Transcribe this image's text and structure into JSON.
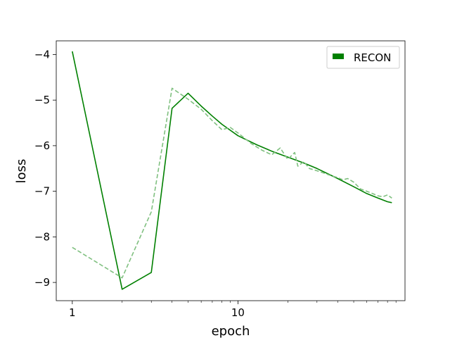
{
  "chart_data": {
    "type": "line",
    "xscale": "log",
    "xlabel": "epoch",
    "ylabel": "loss",
    "xlim": [
      0.8,
      102
    ],
    "ylim": [
      -9.4,
      -3.7
    ],
    "xticks": [
      1,
      10
    ],
    "xtick_labels": [
      "1",
      "10"
    ],
    "yticks": [
      -9,
      -8,
      -7,
      -6,
      -5,
      -4
    ],
    "ytick_labels": [
      "−9",
      "−8",
      "−7",
      "−6",
      "−5",
      "−4"
    ],
    "grid": false,
    "legend_position": "top-right",
    "series": [
      {
        "name": "RECON",
        "style": "solid",
        "color": "#008000",
        "x": [
          1,
          2,
          3,
          4,
          5,
          6,
          7,
          8,
          10,
          13,
          16,
          20,
          25,
          30,
          40,
          50,
          60,
          70,
          80,
          85
        ],
        "y": [
          -3.93,
          -9.15,
          -8.78,
          -5.18,
          -4.85,
          -5.13,
          -5.35,
          -5.53,
          -5.78,
          -5.98,
          -6.12,
          -6.25,
          -6.38,
          -6.5,
          -6.72,
          -6.9,
          -7.05,
          -7.15,
          -7.23,
          -7.25
        ]
      },
      {
        "name": "",
        "style": "dashed",
        "color": "#80c080",
        "x": [
          1,
          2,
          3,
          4,
          5,
          6,
          7,
          8,
          9,
          10,
          12,
          14,
          16,
          18,
          20,
          22,
          23,
          25,
          27,
          30,
          33,
          36,
          40,
          43,
          46,
          50,
          55,
          60,
          65,
          70,
          75,
          80,
          85
        ],
        "y": [
          -8.23,
          -8.9,
          -7.45,
          -4.74,
          -4.98,
          -5.2,
          -5.45,
          -5.65,
          -5.6,
          -5.72,
          -5.95,
          -6.1,
          -6.2,
          -6.05,
          -6.3,
          -6.15,
          -6.45,
          -6.35,
          -6.5,
          -6.55,
          -6.6,
          -6.65,
          -6.7,
          -6.75,
          -6.72,
          -6.8,
          -6.95,
          -7.0,
          -7.05,
          -7.1,
          -7.12,
          -7.08,
          -7.15
        ]
      }
    ]
  }
}
